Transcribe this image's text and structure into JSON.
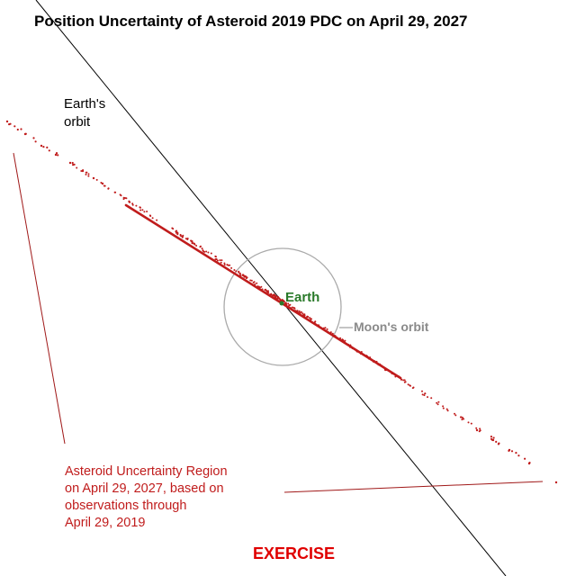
{
  "title": "Position Uncertainty of Asteroid 2019 PDC on April 29, 2027",
  "labels": {
    "earth_orbit": "Earth's\norbit",
    "earth": "Earth",
    "moon_orbit": "Moon's orbit",
    "uncertainty_region": "Asteroid Uncertainty Region\non April 29, 2027, based on\nobservations through\nApril 29, 2019",
    "exercise": "EXERCISE"
  },
  "colors": {
    "orbit_line": "#000000",
    "uncertainty_region": "#c01c1c",
    "earth": "#2a7a2a",
    "moon_orbit": "#aaaaaa",
    "exercise": "#e00000"
  }
}
